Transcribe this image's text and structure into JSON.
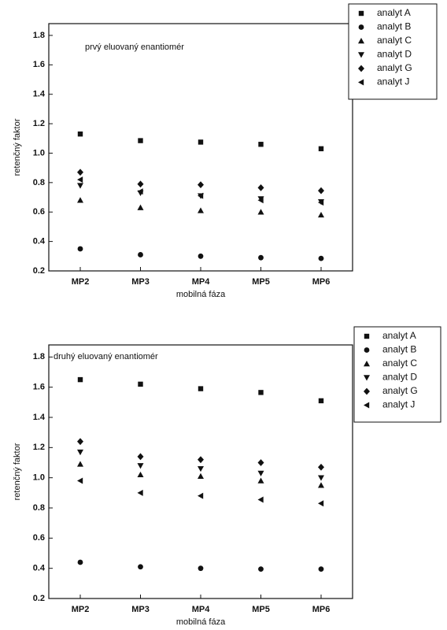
{
  "chart_data": [
    {
      "type": "scatter",
      "annotation": "prvý eluovaný enantiomér",
      "xlabel": "mobilná fáza",
      "ylabel": "retenčný faktor",
      "categories": [
        "MP2",
        "MP3",
        "MP4",
        "MP5",
        "MP6"
      ],
      "ylim": [
        0.2,
        1.88
      ],
      "yticks": [
        0.2,
        0.4,
        0.6,
        {
          "value": 0.8,
          "label": "0.8"
        },
        {
          "value": 1,
          "label": "1.0"
        },
        1.2,
        1.4,
        1.6,
        1.8
      ],
      "series": [
        {
          "name": "analyt A",
          "marker": "square",
          "color": "#111",
          "values": [
            1.13,
            1.085,
            1.075,
            1.06,
            1.03
          ]
        },
        {
          "name": "analyt B",
          "marker": "circle",
          "color": "#111",
          "values": [
            0.35,
            0.31,
            0.3,
            0.29,
            0.285
          ]
        },
        {
          "name": "analyt C",
          "marker": "triangle-up",
          "color": "#111",
          "values": [
            0.68,
            0.63,
            0.61,
            0.6,
            0.58
          ]
        },
        {
          "name": "analyt D",
          "marker": "triangle-down",
          "color": "#111",
          "values": [
            0.78,
            0.73,
            0.71,
            0.69,
            0.67
          ]
        },
        {
          "name": "analyt G",
          "marker": "diamond",
          "color": "#111",
          "values": [
            0.87,
            0.79,
            0.785,
            0.765,
            0.745
          ]
        },
        {
          "name": "analyt J",
          "marker": "triangle-left",
          "color": "#111",
          "values": [
            0.82,
            0.74,
            0.71,
            0.68,
            0.665
          ]
        }
      ]
    },
    {
      "type": "scatter",
      "annotation": "druhý eluovaný enantiomér",
      "xlabel": "mobilná fáza",
      "ylabel": "retenčný faktor",
      "categories": [
        "MP2",
        "MP3",
        "MP4",
        "MP5",
        "MP6"
      ],
      "ylim": [
        0.2,
        1.88
      ],
      "yticks": [
        0.2,
        0.4,
        0.6,
        0.8,
        {
          "value": 1,
          "label": "1.0"
        },
        1.2,
        1.4,
        1.6,
        1.8
      ],
      "series": [
        {
          "name": "analyt A",
          "marker": "square",
          "color": "#111",
          "values": [
            1.65,
            1.62,
            1.59,
            1.565,
            1.51
          ]
        },
        {
          "name": "analyt B",
          "marker": "circle",
          "color": "#111",
          "values": [
            0.44,
            0.41,
            0.4,
            0.395,
            0.395
          ]
        },
        {
          "name": "analyt C",
          "marker": "triangle-up",
          "color": "#111",
          "values": [
            1.09,
            1.02,
            1.01,
            0.98,
            0.95
          ]
        },
        {
          "name": "analyt D",
          "marker": "triangle-down",
          "color": "#111",
          "values": [
            1.17,
            1.08,
            1.06,
            1.03,
            1.0
          ]
        },
        {
          "name": "analyt G",
          "marker": "diamond",
          "color": "#111",
          "values": [
            1.24,
            1.14,
            1.12,
            1.1,
            1.07
          ]
        },
        {
          "name": "analyt J",
          "marker": "triangle-left",
          "color": "#111",
          "values": [
            0.98,
            0.9,
            0.88,
            0.855,
            0.83
          ]
        }
      ]
    }
  ]
}
